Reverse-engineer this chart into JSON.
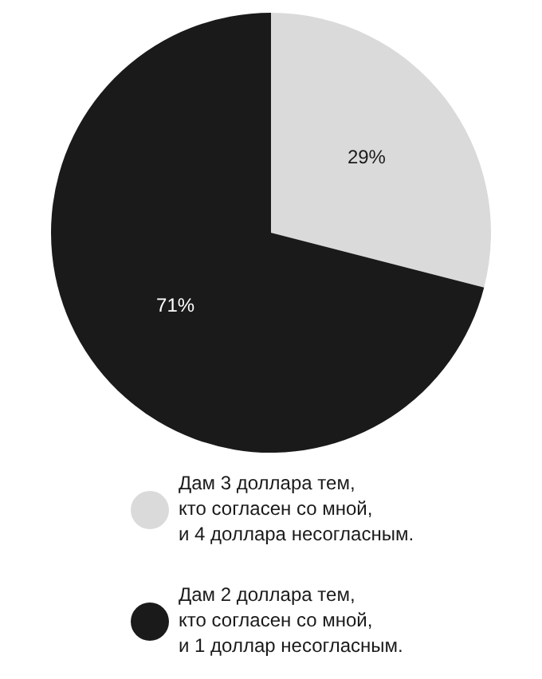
{
  "chart_data": {
    "type": "pie",
    "categories": [
      "Дам 3 доллара тем,\nкто согласен со мной,\nи 4 доллара несогласным.",
      "Дам 2 доллара тем,\nкто согласен со мной,\nи 1 доллар несогласным."
    ],
    "values": [
      29,
      71
    ],
    "colors": [
      "#dadada",
      "#1a1a1a"
    ],
    "value_labels": [
      "29%",
      "71%"
    ],
    "legend": "bottom"
  }
}
